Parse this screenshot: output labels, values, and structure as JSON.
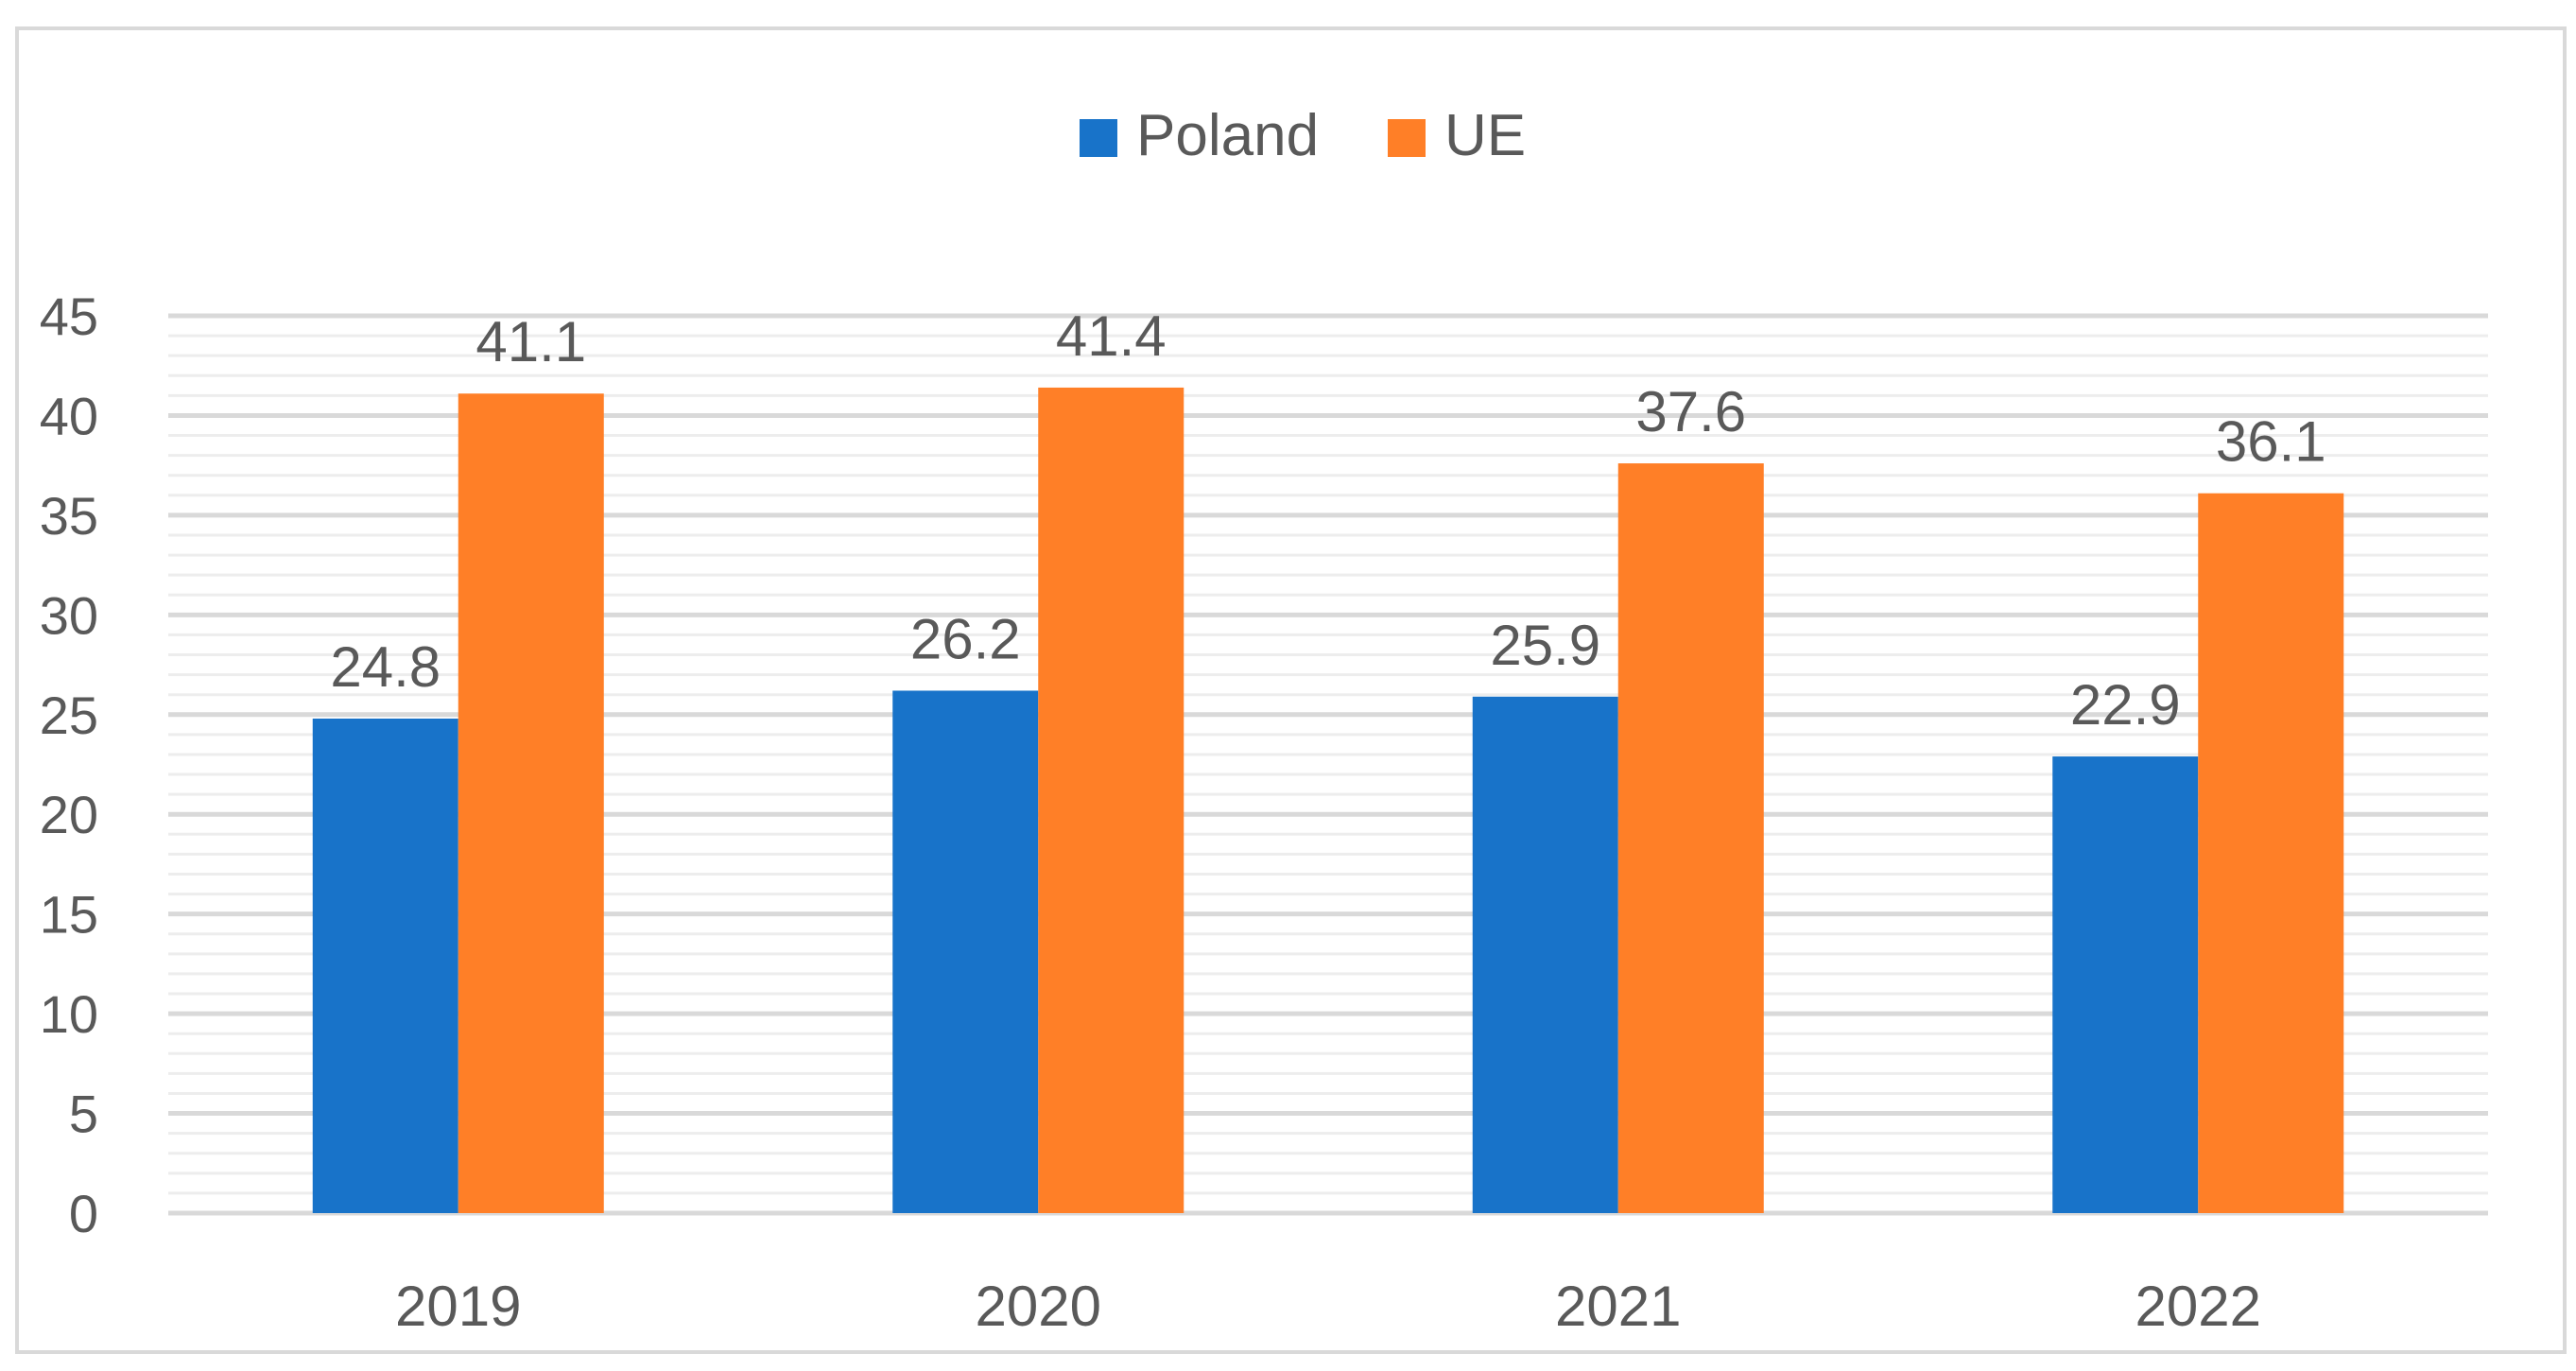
{
  "chart_data": {
    "type": "bar",
    "title": "",
    "xlabel": "",
    "ylabel": "",
    "categories": [
      "2019",
      "2020",
      "2021",
      "2022"
    ],
    "series": [
      {
        "name": "Poland",
        "color": "#1873C9",
        "values": [
          24.8,
          26.2,
          25.9,
          22.9
        ]
      },
      {
        "name": "UE",
        "color": "#FF7F27",
        "values": [
          41.1,
          41.4,
          37.6,
          36.1
        ]
      }
    ],
    "ylim": [
      0,
      45
    ],
    "yticks": [
      0,
      5,
      10,
      15,
      20,
      25,
      30,
      35,
      40,
      45
    ],
    "grid": true,
    "legend_position": "top-center",
    "data_labels": true
  }
}
